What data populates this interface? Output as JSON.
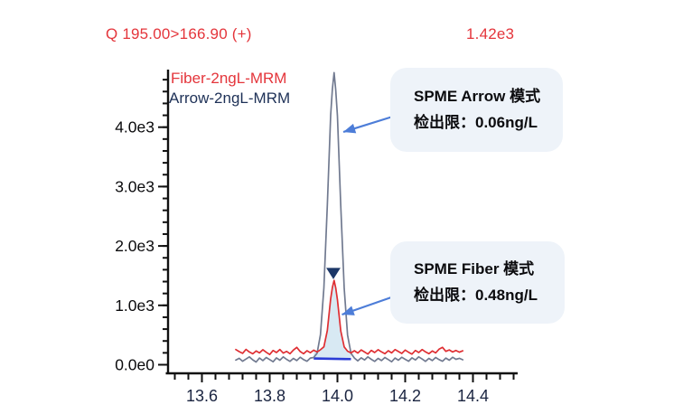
{
  "header": {
    "transition": "Q 195.00>166.90 (+)",
    "scale_label": "1.42e3",
    "color": "#e4353b"
  },
  "legend": {
    "items": [
      {
        "label": "Fiber-2ngL-MRM",
        "color": "#e4353b"
      },
      {
        "label": "Arrow-2ngL-MRM",
        "color": "#1e3157"
      }
    ]
  },
  "annotations": [
    {
      "title": "SPME Arrow 模式",
      "detail": "检出限：0.06ng/L",
      "bg": "#eef3f9"
    },
    {
      "title": "SPME Fiber 模式",
      "detail": "检出限：0.48ng/L",
      "bg": "#eef3f9"
    }
  ],
  "chart_data": {
    "type": "line",
    "title": "",
    "xlabel": "",
    "ylabel": "",
    "x_axis": {
      "min": 13.5,
      "max": 14.53,
      "major_ticks": [
        13.6,
        13.8,
        14.0,
        14.2,
        14.4
      ],
      "tick_labels": [
        "13.6",
        "13.8",
        "14.0",
        "14.2",
        "14.4"
      ],
      "minor_tick_interval": 0.04,
      "minor_tick_start": 13.52,
      "minor_tick_end": 14.52
    },
    "y_axis": {
      "min": -140,
      "max": 4950,
      "major_ticks": [
        0,
        1000,
        2000,
        3000,
        4000
      ],
      "tick_labels": [
        "0.0e0",
        "1.0e3",
        "2.0e3",
        "3.0e3",
        "4.0e3"
      ],
      "minor_tick_interval": 200,
      "minor_tick_end": 4800
    },
    "grid": false,
    "legend_position": "inside-top-left",
    "series": [
      {
        "name": "Arrow-2ngL-MRM",
        "color": "#717a90",
        "peak_retention_time": 13.99,
        "peak_apex": 4920,
        "points": [
          [
            13.7,
            78
          ],
          [
            13.71,
            108
          ],
          [
            13.72,
            60
          ],
          [
            13.73,
            96
          ],
          [
            13.74,
            132
          ],
          [
            13.75,
            82
          ],
          [
            13.76,
            46
          ],
          [
            13.77,
            112
          ],
          [
            13.78,
            70
          ],
          [
            13.79,
            122
          ],
          [
            13.8,
            86
          ],
          [
            13.81,
            50
          ],
          [
            13.82,
            116
          ],
          [
            13.83,
            76
          ],
          [
            13.84,
            132
          ],
          [
            13.85,
            92
          ],
          [
            13.86,
            56
          ],
          [
            13.87,
            106
          ],
          [
            13.88,
            70
          ],
          [
            13.89,
            126
          ],
          [
            13.9,
            86
          ],
          [
            13.91,
            60
          ],
          [
            13.92,
            112
          ],
          [
            13.93,
            122
          ],
          [
            13.94,
            195
          ],
          [
            13.95,
            505
          ],
          [
            13.96,
            1290
          ],
          [
            13.97,
            2680
          ],
          [
            13.98,
            4200
          ],
          [
            13.985,
            4640
          ],
          [
            13.99,
            4920
          ],
          [
            13.995,
            4630
          ],
          [
            14.0,
            4190
          ],
          [
            14.01,
            2670
          ],
          [
            14.02,
            1285
          ],
          [
            14.03,
            500
          ],
          [
            14.04,
            192
          ],
          [
            14.05,
            112
          ],
          [
            14.06,
            66
          ],
          [
            14.07,
            116
          ],
          [
            14.08,
            80
          ],
          [
            14.09,
            132
          ],
          [
            14.1,
            92
          ],
          [
            14.11,
            56
          ],
          [
            14.12,
            106
          ],
          [
            14.13,
            70
          ],
          [
            14.14,
            122
          ],
          [
            14.15,
            86
          ],
          [
            14.16,
            50
          ],
          [
            14.17,
            112
          ],
          [
            14.18,
            76
          ],
          [
            14.19,
            126
          ],
          [
            14.2,
            92
          ],
          [
            14.21,
            60
          ],
          [
            14.22,
            116
          ],
          [
            14.23,
            80
          ],
          [
            14.24,
            132
          ],
          [
            14.25,
            96
          ],
          [
            14.26,
            56
          ],
          [
            14.27,
            106
          ],
          [
            14.28,
            70
          ],
          [
            14.29,
            122
          ],
          [
            14.3,
            86
          ],
          [
            14.31,
            60
          ],
          [
            14.32,
            112
          ],
          [
            14.33,
            76
          ],
          [
            14.34,
            126
          ],
          [
            14.35,
            92
          ],
          [
            14.36,
            108
          ],
          [
            14.37,
            84
          ]
        ]
      },
      {
        "name": "Fiber-2ngL-MRM",
        "color": "#df2f33",
        "peak_retention_time": 13.99,
        "peak_apex": 1420,
        "points": [
          [
            13.7,
            255
          ],
          [
            13.71,
            220
          ],
          [
            13.72,
            192
          ],
          [
            13.73,
            258
          ],
          [
            13.74,
            214
          ],
          [
            13.75,
            184
          ],
          [
            13.76,
            232
          ],
          [
            13.77,
            200
          ],
          [
            13.78,
            252
          ],
          [
            13.79,
            210
          ],
          [
            13.8,
            172
          ],
          [
            13.81,
            240
          ],
          [
            13.82,
            205
          ],
          [
            13.83,
            256
          ],
          [
            13.84,
            196
          ],
          [
            13.85,
            226
          ],
          [
            13.86,
            186
          ],
          [
            13.87,
            246
          ],
          [
            13.88,
            292
          ],
          [
            13.89,
            222
          ],
          [
            13.9,
            186
          ],
          [
            13.91,
            236
          ],
          [
            13.92,
            202
          ],
          [
            13.93,
            245
          ],
          [
            13.94,
            215
          ],
          [
            13.95,
            252
          ],
          [
            13.96,
            302
          ],
          [
            13.97,
            575
          ],
          [
            13.98,
            1110
          ],
          [
            13.985,
            1300
          ],
          [
            13.99,
            1420
          ],
          [
            13.995,
            1295
          ],
          [
            14.0,
            1095
          ],
          [
            14.01,
            568
          ],
          [
            14.02,
            300
          ],
          [
            14.03,
            228
          ],
          [
            14.04,
            200
          ],
          [
            14.05,
            236
          ],
          [
            14.06,
            196
          ],
          [
            14.07,
            250
          ],
          [
            14.08,
            214
          ],
          [
            14.09,
            180
          ],
          [
            14.1,
            242
          ],
          [
            14.11,
            206
          ],
          [
            14.12,
            252
          ],
          [
            14.13,
            216
          ],
          [
            14.14,
            186
          ],
          [
            14.15,
            236
          ],
          [
            14.16,
            200
          ],
          [
            14.17,
            256
          ],
          [
            14.18,
            222
          ],
          [
            14.19,
            190
          ],
          [
            14.2,
            246
          ],
          [
            14.21,
            210
          ],
          [
            14.22,
            180
          ],
          [
            14.23,
            240
          ],
          [
            14.24,
            206
          ],
          [
            14.25,
            256
          ],
          [
            14.26,
            216
          ],
          [
            14.27,
            186
          ],
          [
            14.28,
            232
          ],
          [
            14.29,
            200
          ],
          [
            14.3,
            262
          ],
          [
            14.31,
            292
          ],
          [
            14.32,
            226
          ],
          [
            14.33,
            250
          ],
          [
            14.34,
            214
          ],
          [
            14.35,
            240
          ],
          [
            14.36,
            212
          ],
          [
            14.37,
            235
          ]
        ]
      }
    ],
    "integration": {
      "series": "Fiber-2ngL-MRM",
      "baseline_from": [
        13.93,
        105
      ],
      "baseline_to": [
        14.04,
        95
      ],
      "baseline_color": "#2b3cd6",
      "fill_color": "#d8e9f3"
    },
    "peak_marker": {
      "series": "Fiber-2ngL-MRM",
      "t": 13.988,
      "top_value": 1630,
      "tip_value": 1440,
      "half_width_min": 0.021,
      "color": "#1c3767",
      "shape": "triangle-down"
    },
    "callout_arrow_color": "#4d7dd8"
  }
}
